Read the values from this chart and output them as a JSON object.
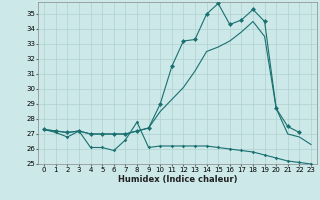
{
  "xlabel": "Humidex (Indice chaleur)",
  "bg_color": "#cce8e8",
  "grid_color": "#b0d0d0",
  "line_color": "#1a7070",
  "xlim": [
    -0.5,
    23.5
  ],
  "ylim": [
    25,
    35.8
  ],
  "yticks": [
    25,
    26,
    27,
    28,
    29,
    30,
    31,
    32,
    33,
    34,
    35
  ],
  "xticks": [
    0,
    1,
    2,
    3,
    4,
    5,
    6,
    7,
    8,
    9,
    10,
    11,
    12,
    13,
    14,
    15,
    16,
    17,
    18,
    19,
    20,
    21,
    22,
    23
  ],
  "line1_x": [
    0,
    1,
    2,
    3,
    4,
    5,
    6,
    7,
    8,
    9,
    10,
    11,
    12,
    13,
    14,
    15,
    16,
    17,
    18,
    19,
    20,
    21,
    22,
    23
  ],
  "line1_y": [
    27.3,
    27.1,
    26.8,
    27.2,
    26.1,
    26.1,
    25.9,
    26.6,
    27.8,
    26.1,
    26.2,
    26.2,
    26.2,
    26.2,
    26.2,
    26.1,
    26.0,
    25.9,
    25.8,
    25.6,
    25.4,
    25.2,
    25.1,
    25.0
  ],
  "line2_x": [
    0,
    1,
    2,
    3,
    4,
    5,
    6,
    7,
    8,
    9,
    10,
    11,
    12,
    13,
    14,
    15,
    16,
    17,
    18,
    19,
    20,
    21,
    22,
    23
  ],
  "line2_y": [
    27.3,
    27.2,
    27.1,
    27.2,
    27.0,
    27.0,
    27.0,
    27.0,
    27.2,
    27.4,
    28.5,
    29.3,
    30.1,
    31.2,
    32.5,
    32.8,
    33.2,
    33.8,
    34.5,
    33.5,
    28.7,
    27.0,
    26.8,
    26.3
  ],
  "line3_x": [
    0,
    1,
    2,
    3,
    4,
    5,
    6,
    7,
    8,
    9,
    10,
    11,
    12,
    13,
    14,
    15,
    16,
    17,
    18,
    19,
    20,
    21,
    22,
    23
  ],
  "line3_y": [
    27.3,
    27.2,
    27.1,
    27.2,
    27.0,
    27.0,
    27.0,
    27.0,
    27.2,
    27.4,
    29.0,
    31.5,
    33.2,
    33.3,
    35.0,
    35.7,
    34.3,
    34.6,
    35.3,
    34.5,
    28.7,
    27.5,
    27.1,
    null
  ],
  "line1_marker": "D",
  "line3_marker": "D"
}
